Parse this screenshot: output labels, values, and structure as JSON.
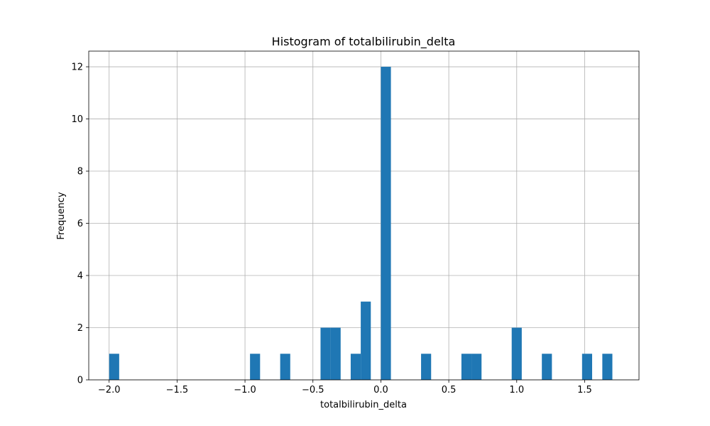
{
  "chart_data": {
    "type": "bar",
    "title": "Histogram of totalbilirubin_delta",
    "xlabel": "totalbilirubin_delta",
    "ylabel": "Frequency",
    "xlim": [
      -2.15,
      1.9
    ],
    "ylim": [
      0,
      12.6
    ],
    "x_ticks": [
      -2.0,
      -1.5,
      -1.0,
      -0.5,
      0.0,
      0.5,
      1.0,
      1.5
    ],
    "x_tick_labels": [
      "−2.0",
      "−1.5",
      "−1.0",
      "−0.5",
      "0.0",
      "0.5",
      "1.0",
      "1.5"
    ],
    "y_ticks": [
      0,
      2,
      4,
      6,
      8,
      10,
      12
    ],
    "y_tick_labels": [
      "0",
      "2",
      "4",
      "6",
      "8",
      "10",
      "12"
    ],
    "grid": true,
    "bar_color": "#1f77b4",
    "bin_width": 0.074,
    "bins": [
      {
        "x0": -2.0,
        "count": 1
      },
      {
        "x0": -0.963,
        "count": 1
      },
      {
        "x0": -0.741,
        "count": 1
      },
      {
        "x0": -0.444,
        "count": 2
      },
      {
        "x0": -0.37,
        "count": 2
      },
      {
        "x0": -0.222,
        "count": 1
      },
      {
        "x0": -0.148,
        "count": 3
      },
      {
        "x0": 0.0,
        "count": 12
      },
      {
        "x0": 0.296,
        "count": 1
      },
      {
        "x0": 0.593,
        "count": 1
      },
      {
        "x0": 0.667,
        "count": 1
      },
      {
        "x0": 0.963,
        "count": 2
      },
      {
        "x0": 1.185,
        "count": 1
      },
      {
        "x0": 1.481,
        "count": 1
      },
      {
        "x0": 1.63,
        "count": 1
      }
    ]
  }
}
